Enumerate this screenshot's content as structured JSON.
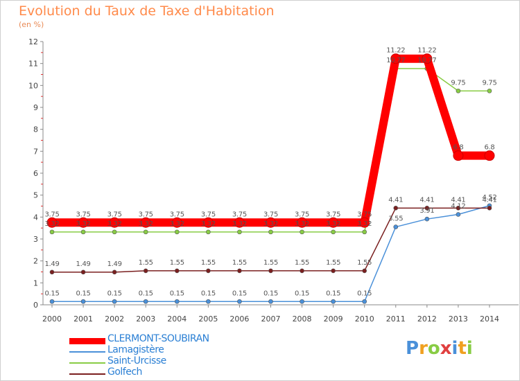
{
  "chart_data": {
    "type": "line",
    "title": "Evolution du Taux de Taxe d'Habitation",
    "subtitle": "(en %)",
    "x": [
      "2000",
      "2001",
      "2002",
      "2003",
      "2004",
      "2005",
      "2006",
      "2007",
      "2008",
      "2009",
      "2010",
      "2011",
      "2012",
      "2013",
      "2014"
    ],
    "y_ticks": [
      "0",
      "1",
      "2",
      "3",
      "4",
      "5",
      "6",
      "7",
      "8",
      "9",
      "10",
      "11",
      "12"
    ],
    "ylim": [
      0,
      12
    ],
    "grid": false,
    "legend_position": "bottom-left",
    "series": [
      {
        "name": "CLERMONT-SOUBIRAN",
        "color": "#ff0000",
        "values": [
          3.75,
          3.75,
          3.75,
          3.75,
          3.75,
          3.75,
          3.75,
          3.75,
          3.75,
          3.75,
          3.75,
          11.22,
          11.22,
          6.8,
          6.8
        ],
        "labels": [
          "3.75",
          "3.75",
          "3.75",
          "3.75",
          "3.75",
          "3.75",
          "3.75",
          "3.75",
          "3.75",
          "3.75",
          "3.75",
          "11.22",
          "11.22",
          "6.8",
          "6.8"
        ]
      },
      {
        "name": "Lamagistère",
        "color": "#4a90d9",
        "values": [
          0.15,
          0.15,
          0.15,
          0.15,
          0.15,
          0.15,
          0.15,
          0.15,
          0.15,
          0.15,
          0.15,
          3.55,
          3.91,
          4.12,
          4.52
        ],
        "labels": [
          "0.15",
          "0.15",
          "0.15",
          "0.15",
          "0.15",
          "0.15",
          "0.15",
          "0.15",
          "0.15",
          "0.15",
          "0.15",
          "3.55",
          "3.91",
          "4.12",
          "4.52"
        ]
      },
      {
        "name": "Saint-Urcisse",
        "color": "#88cc44",
        "values": [
          3.32,
          3.32,
          3.32,
          3.32,
          3.32,
          3.32,
          3.32,
          3.32,
          3.32,
          3.32,
          3.32,
          10.77,
          10.77,
          9.75,
          9.75
        ],
        "labels": [
          "3.32",
          "3.32",
          "3.32",
          "3.32",
          "3.32",
          "3.32",
          "3.32",
          "3.32",
          "3.32",
          "3.32",
          "3.32",
          "10.77",
          "10.77",
          "9.75",
          "9.75"
        ]
      },
      {
        "name": "Golfech",
        "color": "#7a1f1f",
        "values": [
          1.49,
          1.49,
          1.49,
          1.55,
          1.55,
          1.55,
          1.55,
          1.55,
          1.55,
          1.55,
          1.55,
          4.41,
          4.41,
          4.41,
          4.41
        ],
        "labels": [
          "1.49",
          "1.49",
          "1.49",
          "1.55",
          "1.55",
          "1.55",
          "1.55",
          "1.55",
          "1.55",
          "1.55",
          "1.55",
          "4.41",
          "4.41",
          "4.41",
          "4.41"
        ]
      }
    ]
  },
  "logo": {
    "text": "Proxiti",
    "letters": [
      "P",
      "r",
      "o",
      "x",
      "i",
      "t",
      "i"
    ],
    "colors": [
      "#4a90d9",
      "#f0a020",
      "#88cc44",
      "#e04040",
      "#4a90d9",
      "#f0a020",
      "#88cc44"
    ]
  }
}
